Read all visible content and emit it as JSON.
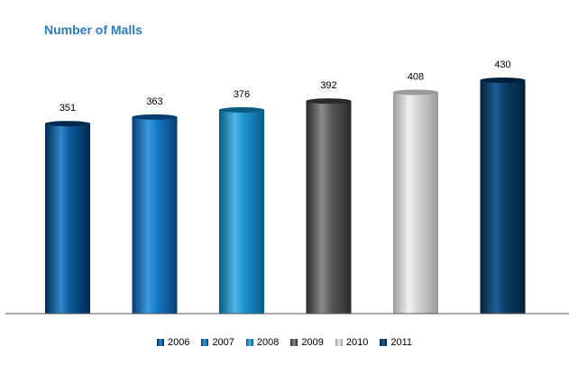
{
  "chart_data": {
    "type": "bar",
    "title": "Number of Malls",
    "categories": [
      "2006",
      "2007",
      "2008",
      "2009",
      "2010",
      "2011"
    ],
    "values": [
      351,
      363,
      376,
      392,
      408,
      430
    ],
    "colors": [
      "#0a5a9c",
      "#1479c8",
      "#1c95d0",
      "#5a5a5c",
      "#d4d4d4",
      "#0b3d66"
    ],
    "colors_dark": [
      "#022a4f",
      "#073d70",
      "#0a5a86",
      "#2a2a2c",
      "#9a9a9a",
      "#02203a"
    ],
    "colors_light": [
      "#2f86c9",
      "#3a9be0",
      "#4fb6e6",
      "#8a8a8c",
      "#f2f2f2",
      "#1f5f92"
    ],
    "legend": [
      "2006",
      "2007",
      "2008",
      "2009",
      "2010",
      "2011"
    ],
    "legend_position": "bottom",
    "grid": false
  }
}
